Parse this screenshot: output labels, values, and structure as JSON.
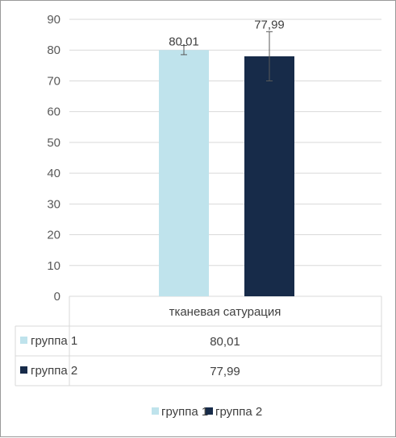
{
  "chart_data": {
    "type": "bar",
    "categories": [
      "тканевая сатурация"
    ],
    "series": [
      {
        "name": "группа 1",
        "values": [
          80.01
        ],
        "error": [
          1.5
        ],
        "label": "80,01",
        "color": "#bfe3ec"
      },
      {
        "name": "группа 2",
        "values": [
          77.99
        ],
        "error": [
          8.0
        ],
        "label": "77,99",
        "color": "#172b49"
      }
    ],
    "ylim": [
      0,
      90
    ],
    "yticks": [
      "0",
      "10",
      "20",
      "30",
      "40",
      "50",
      "60",
      "70",
      "80",
      "90"
    ],
    "grid": true,
    "legend": "bottom",
    "data_table": {
      "header": "тканевая сатурация",
      "rows": [
        {
          "name": "группа 1",
          "value": "80,01"
        },
        {
          "name": "группа 2",
          "value": "77,99"
        }
      ]
    }
  }
}
